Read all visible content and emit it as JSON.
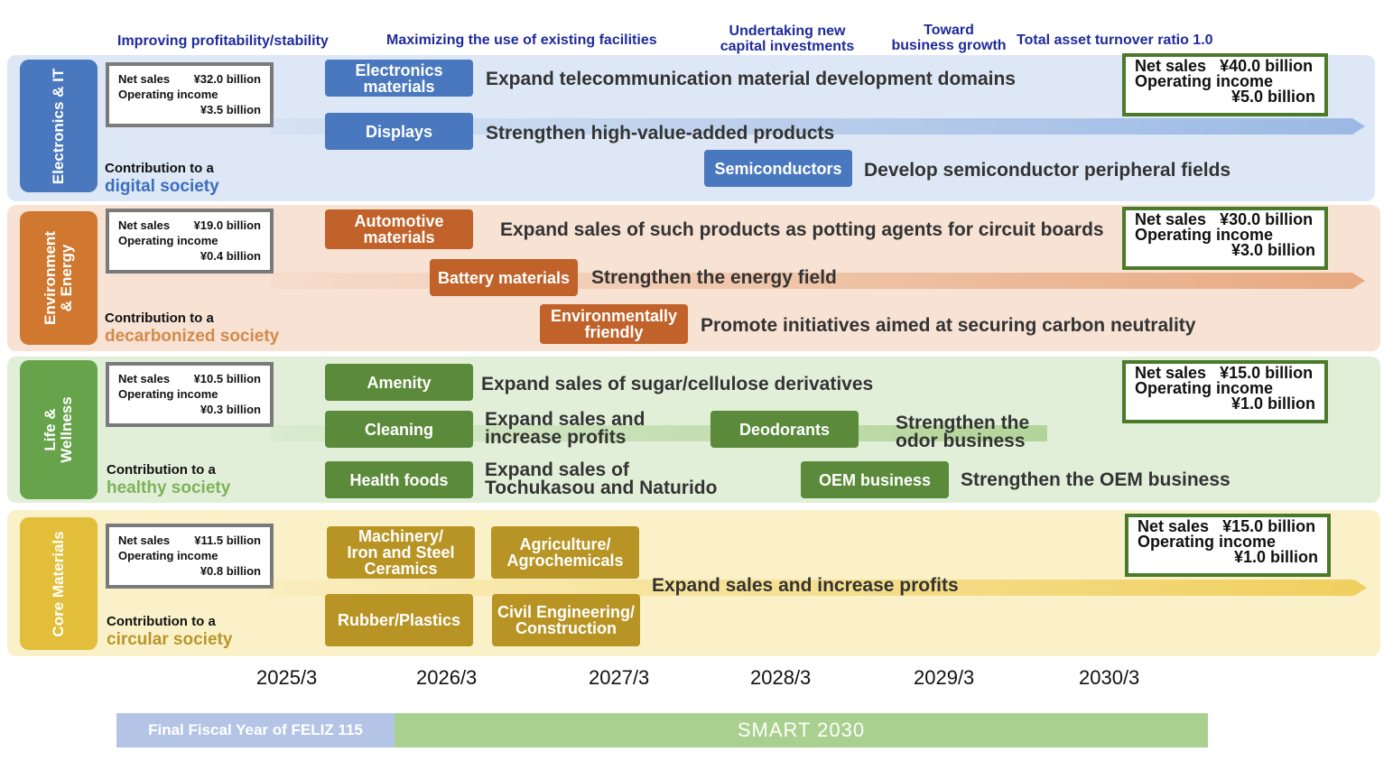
{
  "phases": [
    "Improving profitability/stability",
    "Maximizing the use of existing facilities",
    "Undertaking new\ncapital investments",
    "Toward\nbusiness growth",
    "Total asset turnover ratio 1.0"
  ],
  "segments": [
    {
      "name": "Electronics & IT",
      "color": "#4a78be",
      "band_color": "#dde7f5",
      "current": {
        "net_sales_label": "Net sales",
        "net_sales": "¥32.0 billion",
        "oi_label": "Operating income",
        "oi": "¥3.5 billion"
      },
      "contribution_prefix": "Contribution to a",
      "society": "digital society",
      "society_color": "#3b6fbf",
      "target": {
        "net_sales_label": "Net sales",
        "net_sales": "¥40.0 billion",
        "oi_label": "Operating income",
        "oi": "¥5.0 billion"
      },
      "tags": [
        "Electronics\nmaterials",
        "Displays",
        "Semiconductors"
      ],
      "descs": [
        "Expand telecommunication material development domains",
        "Strengthen high-value-added products",
        "Develop semiconductor peripheral fields"
      ]
    },
    {
      "name": "Environment\n& Energy",
      "color": "#d07830",
      "band_color": "#f7e2d4",
      "current": {
        "net_sales_label": "Net sales",
        "net_sales": "¥19.0 billion",
        "oi_label": "Operating income",
        "oi": "¥0.4 billion"
      },
      "contribution_prefix": "Contribution to a",
      "society": "decarbonized society",
      "society_color": "#d48a4a",
      "target": {
        "net_sales_label": "Net sales",
        "net_sales": "¥30.0 billion",
        "oi_label": "Operating income",
        "oi": "¥3.0 billion"
      },
      "tags": [
        "Automotive\nmaterials",
        "Battery materials",
        "Environmentally\nfriendly"
      ],
      "descs": [
        "Expand sales of such products as potting agents for circuit boards",
        "Strengthen the energy field",
        "Promote initiatives aimed at securing carbon neutrality"
      ]
    },
    {
      "name": "Life &\nWellness",
      "color": "#66a34a",
      "band_color": "#e1efd9",
      "current": {
        "net_sales_label": "Net sales",
        "net_sales": "¥10.5 billion",
        "oi_label": "Operating income",
        "oi": "¥0.3 billion"
      },
      "contribution_prefix": "Contribution to a",
      "society": "healthy society",
      "society_color": "#7cb35a",
      "target": {
        "net_sales_label": "Net sales",
        "net_sales": "¥15.0 billion",
        "oi_label": "Operating income",
        "oi": "¥1.0 billion"
      },
      "tags": [
        "Amenity",
        "Cleaning",
        "Deodorants",
        "Health foods",
        "OEM business"
      ],
      "descs": [
        "Expand sales of sugar/cellulose derivatives",
        "Expand sales and\nincrease profits",
        "Strengthen the\nodor business",
        "Expand sales of\nTochukasou and Naturido",
        "Strengthen the OEM business"
      ]
    },
    {
      "name": "Core Materials",
      "color": "#e3be3a",
      "band_color": "#fbf1c9",
      "current": {
        "net_sales_label": "Net sales",
        "net_sales": "¥11.5 billion",
        "oi_label": "Operating income",
        "oi": "¥0.8 billion"
      },
      "contribution_prefix": "Contribution to a",
      "society": "circular society",
      "society_color": "#b8962a",
      "target": {
        "net_sales_label": "Net sales",
        "net_sales": "¥15.0 billion",
        "oi_label": "Operating income",
        "oi": "¥1.0 billion"
      },
      "tags": [
        "Machinery/\nIron and Steel\nCeramics",
        "Agriculture/\nAgrochemicals",
        "Rubber/Plastics",
        "Civil Engineering/\nConstruction"
      ],
      "descs": [
        "Expand sales and increase profits"
      ]
    }
  ],
  "years": [
    "2025/3",
    "2026/3",
    "2027/3",
    "2028/3",
    "2029/3",
    "2030/3"
  ],
  "bottom": {
    "left": "Final Fiscal Year of FELIZ 115",
    "right": "SMART 2030",
    "left_color": "#b4c4e6",
    "right_color": "#a9d08e"
  }
}
